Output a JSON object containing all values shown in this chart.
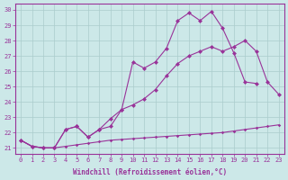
{
  "x_values": [
    0,
    1,
    2,
    3,
    4,
    5,
    6,
    7,
    8,
    9,
    10,
    11,
    12,
    13,
    14,
    15,
    16,
    17,
    18,
    19,
    20,
    21,
    22,
    23
  ],
  "line_peak": [
    21.5,
    21.1,
    21.0,
    21.0,
    22.2,
    22.4,
    21.7,
    22.2,
    22.9,
    23.5,
    26.6,
    26.2,
    26.6,
    27.5,
    29.3,
    29.8,
    29.3,
    29.9,
    28.8,
    27.2,
    25.3,
    25.2,
    null,
    null
  ],
  "line_diag": [
    21.5,
    21.1,
    21.0,
    21.0,
    22.2,
    22.4,
    21.7,
    22.2,
    22.4,
    23.5,
    23.8,
    24.2,
    24.8,
    25.7,
    26.5,
    27.0,
    27.3,
    27.6,
    27.3,
    27.6,
    28.0,
    27.3,
    25.3,
    24.5
  ],
  "line_flat": [
    21.5,
    21.1,
    21.0,
    21.0,
    21.1,
    21.2,
    21.3,
    21.4,
    21.5,
    21.55,
    21.6,
    21.65,
    21.7,
    21.75,
    21.8,
    21.85,
    21.9,
    21.95,
    22.0,
    22.1,
    22.2,
    22.3,
    22.4,
    22.5
  ],
  "color": "#993399",
  "bg_color": "#cce8e8",
  "grid_color": "#aacccc",
  "xlabel": "Windchill (Refroidissement éolien,°C)",
  "ylim": [
    20.6,
    30.4
  ],
  "xlim": [
    -0.5,
    23.5
  ],
  "yticks": [
    21,
    22,
    23,
    24,
    25,
    26,
    27,
    28,
    29,
    30
  ],
  "xticks": [
    0,
    1,
    2,
    3,
    4,
    5,
    6,
    7,
    8,
    9,
    10,
    11,
    12,
    13,
    14,
    15,
    16,
    17,
    18,
    19,
    20,
    21,
    22,
    23
  ]
}
